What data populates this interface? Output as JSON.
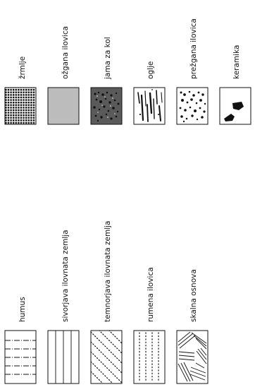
{
  "legend": {
    "top_row": [
      {
        "label": "žrmlje",
        "pattern": "dense-grid"
      },
      {
        "label": "ožgana ilovica",
        "pattern": "solid-light-gray",
        "color": "#bcbcbc"
      },
      {
        "label": "jama za kol",
        "pattern": "dark-gray-speckled",
        "color": "#5a5a5a"
      },
      {
        "label": "oglje",
        "pattern": "black-streaks"
      },
      {
        "label": "prežgana ilovica",
        "pattern": "black-speckles"
      },
      {
        "label": "keramika",
        "pattern": "black-shards"
      }
    ],
    "bottom_row": [
      {
        "label": "humus",
        "pattern": "dash-dot-lines"
      },
      {
        "label": "sivorjava ilovnata zemlja",
        "pattern": "solid-lines"
      },
      {
        "label": "temnorjava ilovnata zemlja",
        "pattern": "diagonal-dots"
      },
      {
        "label": "rumena ilovica",
        "pattern": "dotted-lines"
      },
      {
        "label": "skalna osnova",
        "pattern": "hatched-rock"
      }
    ]
  }
}
